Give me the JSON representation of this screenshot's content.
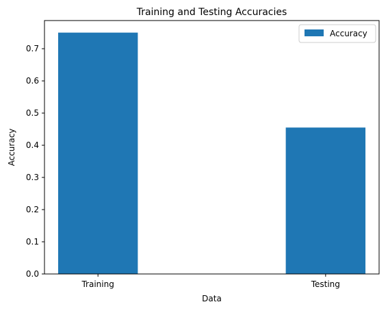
{
  "chart_data": {
    "type": "bar",
    "title": "Training and Testing Accuracies",
    "xlabel": "Data",
    "ylabel": "Accuracy",
    "categories": [
      "Training",
      "Testing"
    ],
    "series": [
      {
        "name": "Accuracy",
        "values": [
          0.75,
          0.455
        ],
        "color": "#1f77b4"
      }
    ],
    "ylim": [
      0,
      0.7875
    ],
    "yticks": [
      0.0,
      0.1,
      0.2,
      0.3,
      0.4,
      0.5,
      0.6,
      0.7
    ],
    "ytick_labels": [
      "0.0",
      "0.1",
      "0.2",
      "0.3",
      "0.4",
      "0.5",
      "0.6",
      "0.7"
    ],
    "grid": false,
    "legend_position": "top-right"
  }
}
